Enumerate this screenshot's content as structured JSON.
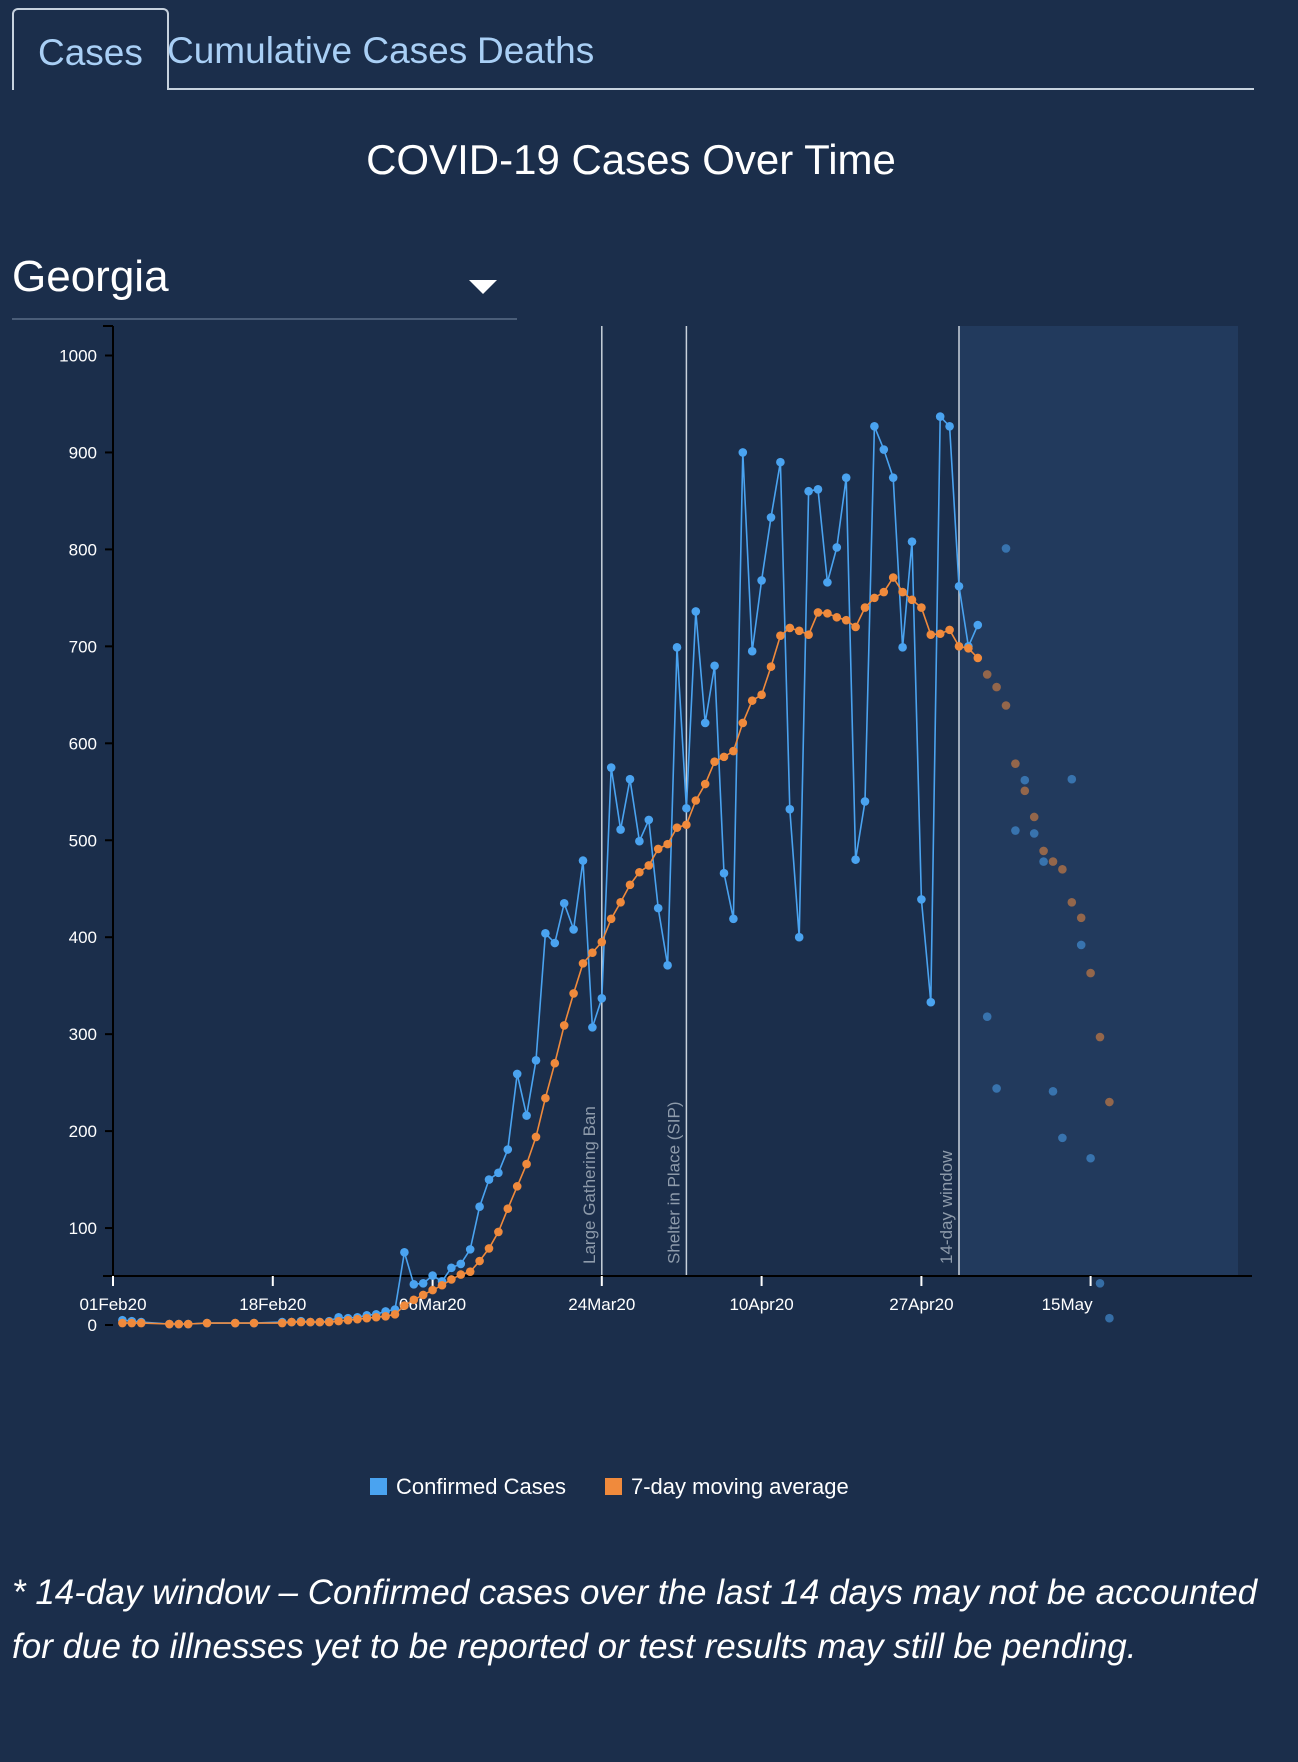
{
  "tabs": [
    {
      "label": "Cases",
      "active": true
    },
    {
      "label": "Cumulative Cases",
      "active": false
    },
    {
      "label": "Deaths",
      "active": false
    }
  ],
  "title": "COVID-19 Cases Over Time",
  "state_select": {
    "value": "Georgia",
    "icon": "chevron-down-icon"
  },
  "footnote": "* 14-day window – Confirmed cases over the last 14 days may not be accounted for due to illnesses yet to be reported or test results may still be pending.",
  "colors": {
    "background": "#1b2e4b",
    "confirmed": "#4aa3f0",
    "average": "#f08a3c",
    "window_shade": "#223a5d"
  },
  "chart_data": {
    "type": "line",
    "title": "",
    "xlabel": "",
    "ylabel": "",
    "ylim": [
      -90,
      1030
    ],
    "yticks": [
      0,
      100,
      200,
      300,
      400,
      500,
      600,
      700,
      800,
      900,
      1000
    ],
    "xrange": [
      "2020-02-01",
      "2020-05-15"
    ],
    "xticks": [
      {
        "date": "2020-02-01",
        "label": "01Feb20"
      },
      {
        "date": "2020-02-18",
        "label": "18Feb20"
      },
      {
        "date": "2020-03-06",
        "label": "06Mar20"
      },
      {
        "date": "2020-03-24",
        "label": "24Mar20"
      },
      {
        "date": "2020-04-10",
        "label": "10Apr20"
      },
      {
        "date": "2020-04-27",
        "label": "27Apr20"
      },
      {
        "date": "2020-05-15",
        "label": "15May"
      }
    ],
    "grid": false,
    "legend_position": "bottom",
    "annotations": [
      {
        "date": "2020-03-24",
        "label": "Large Gathering Ban"
      },
      {
        "date": "2020-04-02",
        "label": "Shelter in Place (SIP)"
      },
      {
        "date": "2020-05-01",
        "label": "14-day window"
      }
    ],
    "window_start": "2020-05-01",
    "window_end": "2020-05-15",
    "series": [
      {
        "name": "Confirmed Cases",
        "color": "#4aa3f0",
        "points": [
          [
            "2020-02-02",
            5
          ],
          [
            "2020-02-03",
            4
          ],
          [
            "2020-02-04",
            3
          ],
          [
            "2020-02-07",
            1
          ],
          [
            "2020-02-08",
            1
          ],
          [
            "2020-02-09",
            1
          ],
          [
            "2020-02-11",
            2
          ],
          [
            "2020-02-14",
            2
          ],
          [
            "2020-02-16",
            2
          ],
          [
            "2020-02-19",
            3
          ],
          [
            "2020-02-20",
            3
          ],
          [
            "2020-02-21",
            4
          ],
          [
            "2020-02-22",
            3
          ],
          [
            "2020-02-23",
            3
          ],
          [
            "2020-02-24",
            4
          ],
          [
            "2020-02-25",
            8
          ],
          [
            "2020-02-26",
            7
          ],
          [
            "2020-02-27",
            8
          ],
          [
            "2020-02-28",
            10
          ],
          [
            "2020-02-29",
            11
          ],
          [
            "2020-03-01",
            14
          ],
          [
            "2020-03-02",
            16
          ],
          [
            "2020-03-03",
            75
          ],
          [
            "2020-03-04",
            42
          ],
          [
            "2020-03-05",
            43
          ],
          [
            "2020-03-06",
            51
          ],
          [
            "2020-03-07",
            45
          ],
          [
            "2020-03-08",
            59
          ],
          [
            "2020-03-09",
            63
          ],
          [
            "2020-03-10",
            78
          ],
          [
            "2020-03-11",
            122
          ],
          [
            "2020-03-12",
            150
          ],
          [
            "2020-03-13",
            157
          ],
          [
            "2020-03-14",
            181
          ],
          [
            "2020-03-15",
            259
          ],
          [
            "2020-03-16",
            216
          ],
          [
            "2020-03-17",
            273
          ],
          [
            "2020-03-18",
            404
          ],
          [
            "2020-03-19",
            394
          ],
          [
            "2020-03-20",
            435
          ],
          [
            "2020-03-21",
            408
          ],
          [
            "2020-03-22",
            479
          ],
          [
            "2020-03-23",
            307
          ],
          [
            "2020-03-24",
            337
          ],
          [
            "2020-03-25",
            575
          ],
          [
            "2020-03-26",
            511
          ],
          [
            "2020-03-27",
            563
          ],
          [
            "2020-03-28",
            499
          ],
          [
            "2020-03-29",
            521
          ],
          [
            "2020-03-30",
            430
          ],
          [
            "2020-03-31",
            371
          ],
          [
            "2020-04-01",
            699
          ],
          [
            "2020-04-02",
            533
          ],
          [
            "2020-04-03",
            736
          ],
          [
            "2020-04-04",
            621
          ],
          [
            "2020-04-05",
            680
          ],
          [
            "2020-04-06",
            466
          ],
          [
            "2020-04-07",
            419
          ],
          [
            "2020-04-08",
            900
          ],
          [
            "2020-04-09",
            695
          ],
          [
            "2020-04-10",
            768
          ],
          [
            "2020-04-11",
            833
          ],
          [
            "2020-04-12",
            890
          ],
          [
            "2020-04-13",
            532
          ],
          [
            "2020-04-14",
            400
          ],
          [
            "2020-04-15",
            860
          ],
          [
            "2020-04-16",
            862
          ],
          [
            "2020-04-17",
            766
          ],
          [
            "2020-04-18",
            802
          ],
          [
            "2020-04-19",
            874
          ],
          [
            "2020-04-20",
            480
          ],
          [
            "2020-04-21",
            540
          ],
          [
            "2020-04-22",
            927
          ],
          [
            "2020-04-23",
            903
          ],
          [
            "2020-04-24",
            874
          ],
          [
            "2020-04-25",
            699
          ],
          [
            "2020-04-26",
            808
          ],
          [
            "2020-04-27",
            439
          ],
          [
            "2020-04-28",
            333
          ],
          [
            "2020-04-29",
            937
          ],
          [
            "2020-04-30",
            927
          ],
          [
            "2020-05-01",
            762
          ],
          [
            "2020-05-02",
            700
          ],
          [
            "2020-05-03",
            722
          ]
        ]
      },
      {
        "name": "7-day moving average",
        "color": "#f08a3c",
        "points": [
          [
            "2020-02-02",
            2
          ],
          [
            "2020-02-03",
            2
          ],
          [
            "2020-02-04",
            2
          ],
          [
            "2020-02-07",
            1
          ],
          [
            "2020-02-08",
            1
          ],
          [
            "2020-02-09",
            1
          ],
          [
            "2020-02-11",
            2
          ],
          [
            "2020-02-14",
            2
          ],
          [
            "2020-02-16",
            2
          ],
          [
            "2020-02-19",
            2
          ],
          [
            "2020-02-20",
            3
          ],
          [
            "2020-02-21",
            3
          ],
          [
            "2020-02-22",
            3
          ],
          [
            "2020-02-23",
            3
          ],
          [
            "2020-02-24",
            3
          ],
          [
            "2020-02-25",
            4
          ],
          [
            "2020-02-26",
            5
          ],
          [
            "2020-02-27",
            6
          ],
          [
            "2020-02-28",
            7
          ],
          [
            "2020-02-29",
            8
          ],
          [
            "2020-03-01",
            9
          ],
          [
            "2020-03-02",
            11
          ],
          [
            "2020-03-03",
            20
          ],
          [
            "2020-03-04",
            26
          ],
          [
            "2020-03-05",
            31
          ],
          [
            "2020-03-06",
            36
          ],
          [
            "2020-03-07",
            41
          ],
          [
            "2020-03-08",
            47
          ],
          [
            "2020-03-09",
            52
          ],
          [
            "2020-03-10",
            55
          ],
          [
            "2020-03-11",
            66
          ],
          [
            "2020-03-12",
            79
          ],
          [
            "2020-03-13",
            96
          ],
          [
            "2020-03-14",
            120
          ],
          [
            "2020-03-15",
            143
          ],
          [
            "2020-03-16",
            166
          ],
          [
            "2020-03-17",
            194
          ],
          [
            "2020-03-18",
            234
          ],
          [
            "2020-03-19",
            270
          ],
          [
            "2020-03-20",
            309
          ],
          [
            "2020-03-21",
            342
          ],
          [
            "2020-03-22",
            373
          ],
          [
            "2020-03-23",
            384
          ],
          [
            "2020-03-24",
            395
          ],
          [
            "2020-03-25",
            419
          ],
          [
            "2020-03-26",
            436
          ],
          [
            "2020-03-27",
            454
          ],
          [
            "2020-03-28",
            467
          ],
          [
            "2020-03-29",
            474
          ],
          [
            "2020-03-30",
            491
          ],
          [
            "2020-03-31",
            496
          ],
          [
            "2020-04-01",
            513
          ],
          [
            "2020-04-02",
            516
          ],
          [
            "2020-04-03",
            541
          ],
          [
            "2020-04-04",
            558
          ],
          [
            "2020-04-05",
            581
          ],
          [
            "2020-04-06",
            586
          ],
          [
            "2020-04-07",
            592
          ],
          [
            "2020-04-08",
            621
          ],
          [
            "2020-04-09",
            644
          ],
          [
            "2020-04-10",
            650
          ],
          [
            "2020-04-11",
            679
          ],
          [
            "2020-04-12",
            711
          ],
          [
            "2020-04-13",
            719
          ],
          [
            "2020-04-14",
            716
          ],
          [
            "2020-04-15",
            712
          ],
          [
            "2020-04-16",
            735
          ],
          [
            "2020-04-17",
            734
          ],
          [
            "2020-04-18",
            730
          ],
          [
            "2020-04-19",
            727
          ],
          [
            "2020-04-20",
            720
          ],
          [
            "2020-04-21",
            740
          ],
          [
            "2020-04-22",
            750
          ],
          [
            "2020-04-23",
            756
          ],
          [
            "2020-04-24",
            771
          ],
          [
            "2020-04-25",
            756
          ],
          [
            "2020-04-26",
            748
          ],
          [
            "2020-04-27",
            740
          ],
          [
            "2020-04-28",
            712
          ],
          [
            "2020-04-29",
            713
          ],
          [
            "2020-04-30",
            717
          ],
          [
            "2020-05-01",
            700
          ],
          [
            "2020-05-02",
            698
          ],
          [
            "2020-05-03",
            688
          ]
        ]
      },
      {
        "name": "Confirmed Cases (14-day window)",
        "legend": false,
        "color": "#4aa3f0",
        "points": [
          [
            "2020-05-04",
            318
          ],
          [
            "2020-05-05",
            244
          ],
          [
            "2020-05-06",
            801
          ],
          [
            "2020-05-07",
            510
          ],
          [
            "2020-05-08",
            562
          ],
          [
            "2020-05-09",
            507
          ],
          [
            "2020-05-10",
            478
          ],
          [
            "2020-05-11",
            241
          ],
          [
            "2020-05-12",
            193
          ],
          [
            "2020-05-13",
            563
          ],
          [
            "2020-05-14",
            392
          ],
          [
            "2020-05-15",
            172
          ],
          [
            "2020-05-16",
            43
          ],
          [
            "2020-05-17",
            7
          ]
        ]
      },
      {
        "name": "7-day moving average (14-day window)",
        "legend": false,
        "color": "#f08a3c",
        "points": [
          [
            "2020-05-04",
            671
          ],
          [
            "2020-05-05",
            658
          ],
          [
            "2020-05-06",
            639
          ],
          [
            "2020-05-07",
            579
          ],
          [
            "2020-05-08",
            551
          ],
          [
            "2020-05-09",
            524
          ],
          [
            "2020-05-10",
            489
          ],
          [
            "2020-05-11",
            478
          ],
          [
            "2020-05-12",
            470
          ],
          [
            "2020-05-13",
            436
          ],
          [
            "2020-05-14",
            420
          ],
          [
            "2020-05-15",
            363
          ],
          [
            "2020-05-16",
            297
          ],
          [
            "2020-05-17",
            230
          ]
        ]
      }
    ],
    "legend": [
      {
        "label": "Confirmed Cases",
        "color": "#4aa3f0"
      },
      {
        "label": "7-day moving average",
        "color": "#f08a3c"
      }
    ]
  }
}
